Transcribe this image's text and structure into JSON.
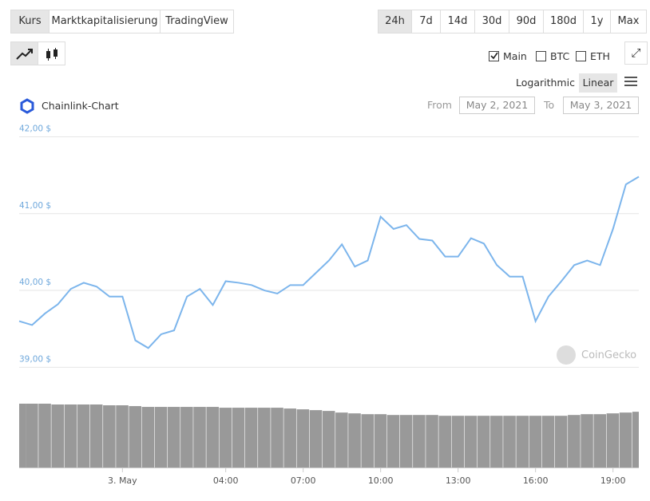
{
  "tabs": [
    "Kurs",
    "Marktkapitalisierung",
    "TradingView"
  ],
  "ranges": [
    "24h",
    "7d",
    "14d",
    "30d",
    "90d",
    "180d",
    "1y",
    "Max"
  ],
  "series_toggles": [
    "Main",
    "BTC",
    "ETH"
  ],
  "scales": [
    "Logarithmic",
    "Linear"
  ],
  "date_range": {
    "from_label": "From",
    "from": "May 2, 2021",
    "to_label": "To",
    "to": "May 3, 2021"
  },
  "watermark": "CoinGecko",
  "chart_data": {
    "type": "line",
    "title": "Chainlink-Chart",
    "categories": [
      null,
      null,
      null,
      null,
      null,
      null,
      null,
      null,
      "3. May",
      null,
      null,
      null,
      null,
      null,
      null,
      null,
      "04:00",
      null,
      null,
      null,
      null,
      null,
      "07:00",
      null,
      null,
      null,
      null,
      null,
      "10:00",
      null,
      null,
      null,
      null,
      null,
      "13:00",
      null,
      null,
      null,
      null,
      null,
      "16:00",
      null,
      null,
      null,
      null,
      null,
      "19:00",
      null,
      null
    ],
    "series": [
      {
        "name": "Main",
        "color": "#7cb5ec",
        "values": [
          39.6,
          39.55,
          39.7,
          39.82,
          40.02,
          40.1,
          40.05,
          39.92,
          39.92,
          39.35,
          39.25,
          39.43,
          39.48,
          39.92,
          40.02,
          39.81,
          40.12,
          40.1,
          40.07,
          40.0,
          39.96,
          40.07,
          40.07,
          40.23,
          40.39,
          40.6,
          40.31,
          40.39,
          40.96,
          40.8,
          40.85,
          40.67,
          40.65,
          40.44,
          40.44,
          40.68,
          40.61,
          40.33,
          40.18,
          40.18,
          39.6,
          39.92,
          40.12,
          40.33,
          40.39,
          40.33,
          40.8,
          41.38,
          41.48
        ]
      }
    ],
    "volume": {
      "color": "#999999",
      "values": [
        79,
        79,
        79,
        78,
        78,
        78,
        78,
        77,
        77,
        76,
        75,
        75,
        75,
        75,
        75,
        75,
        74,
        74,
        74,
        74,
        74,
        73,
        72,
        71,
        70,
        68,
        67,
        66,
        66,
        65,
        65,
        65,
        65,
        64,
        64,
        64,
        64,
        64,
        64,
        64,
        64,
        64,
        64,
        65,
        66,
        66,
        67,
        68,
        69
      ]
    },
    "ylim": [
      38.9,
      42.15
    ],
    "yticks": [
      {
        "value": 39,
        "label": "39,00 $"
      },
      {
        "value": 40,
        "label": "40,00 $"
      },
      {
        "value": 41,
        "label": "41,00 $"
      },
      {
        "value": 42,
        "label": "42,00 $"
      }
    ],
    "grid": true
  }
}
